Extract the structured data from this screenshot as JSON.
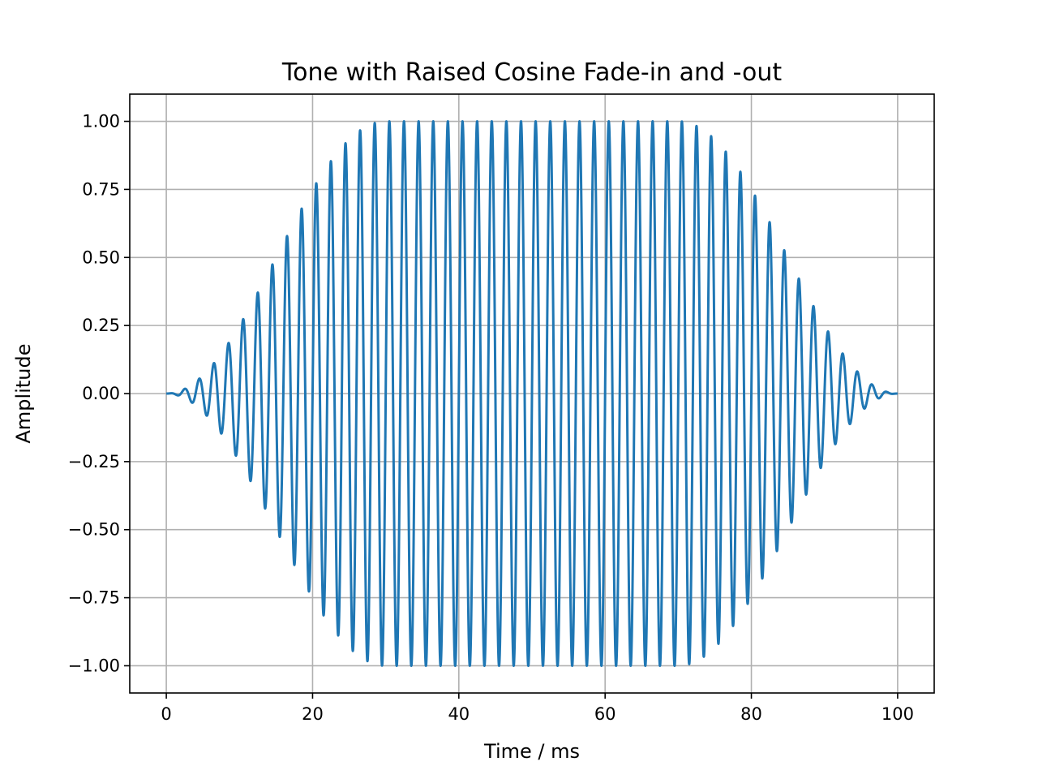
{
  "chart_data": {
    "type": "line",
    "title": "Tone with Raised Cosine Fade-in and -out",
    "xlabel": "Time / ms",
    "ylabel": "Amplitude",
    "xlim": [
      -5,
      105
    ],
    "ylim": [
      -1.1,
      1.1
    ],
    "x_ticks": [
      0,
      20,
      40,
      60,
      80,
      100
    ],
    "x_tick_labels": [
      "0",
      "20",
      "40",
      "60",
      "80",
      "100"
    ],
    "y_ticks": [
      1.0,
      0.75,
      0.5,
      0.25,
      0.0,
      -0.25,
      -0.5,
      -0.75,
      -1.0
    ],
    "y_tick_labels": [
      "1.00",
      "0.75",
      "0.50",
      "0.25",
      "0.00",
      "−0.25",
      "−0.50",
      "−0.75",
      "−1.00"
    ],
    "grid": true,
    "series": [
      {
        "color": "#1f77b4",
        "signal": {
          "kind": "sine tone with raised-cosine fade-in and fade-out",
          "frequency_hz": 500,
          "duration_ms": 100,
          "fade_in_ms": [
            0,
            30
          ],
          "sustain_ms": [
            30,
            70
          ],
          "fade_out_ms": [
            70,
            100
          ],
          "peak_amplitude": 1.0
        }
      }
    ]
  }
}
